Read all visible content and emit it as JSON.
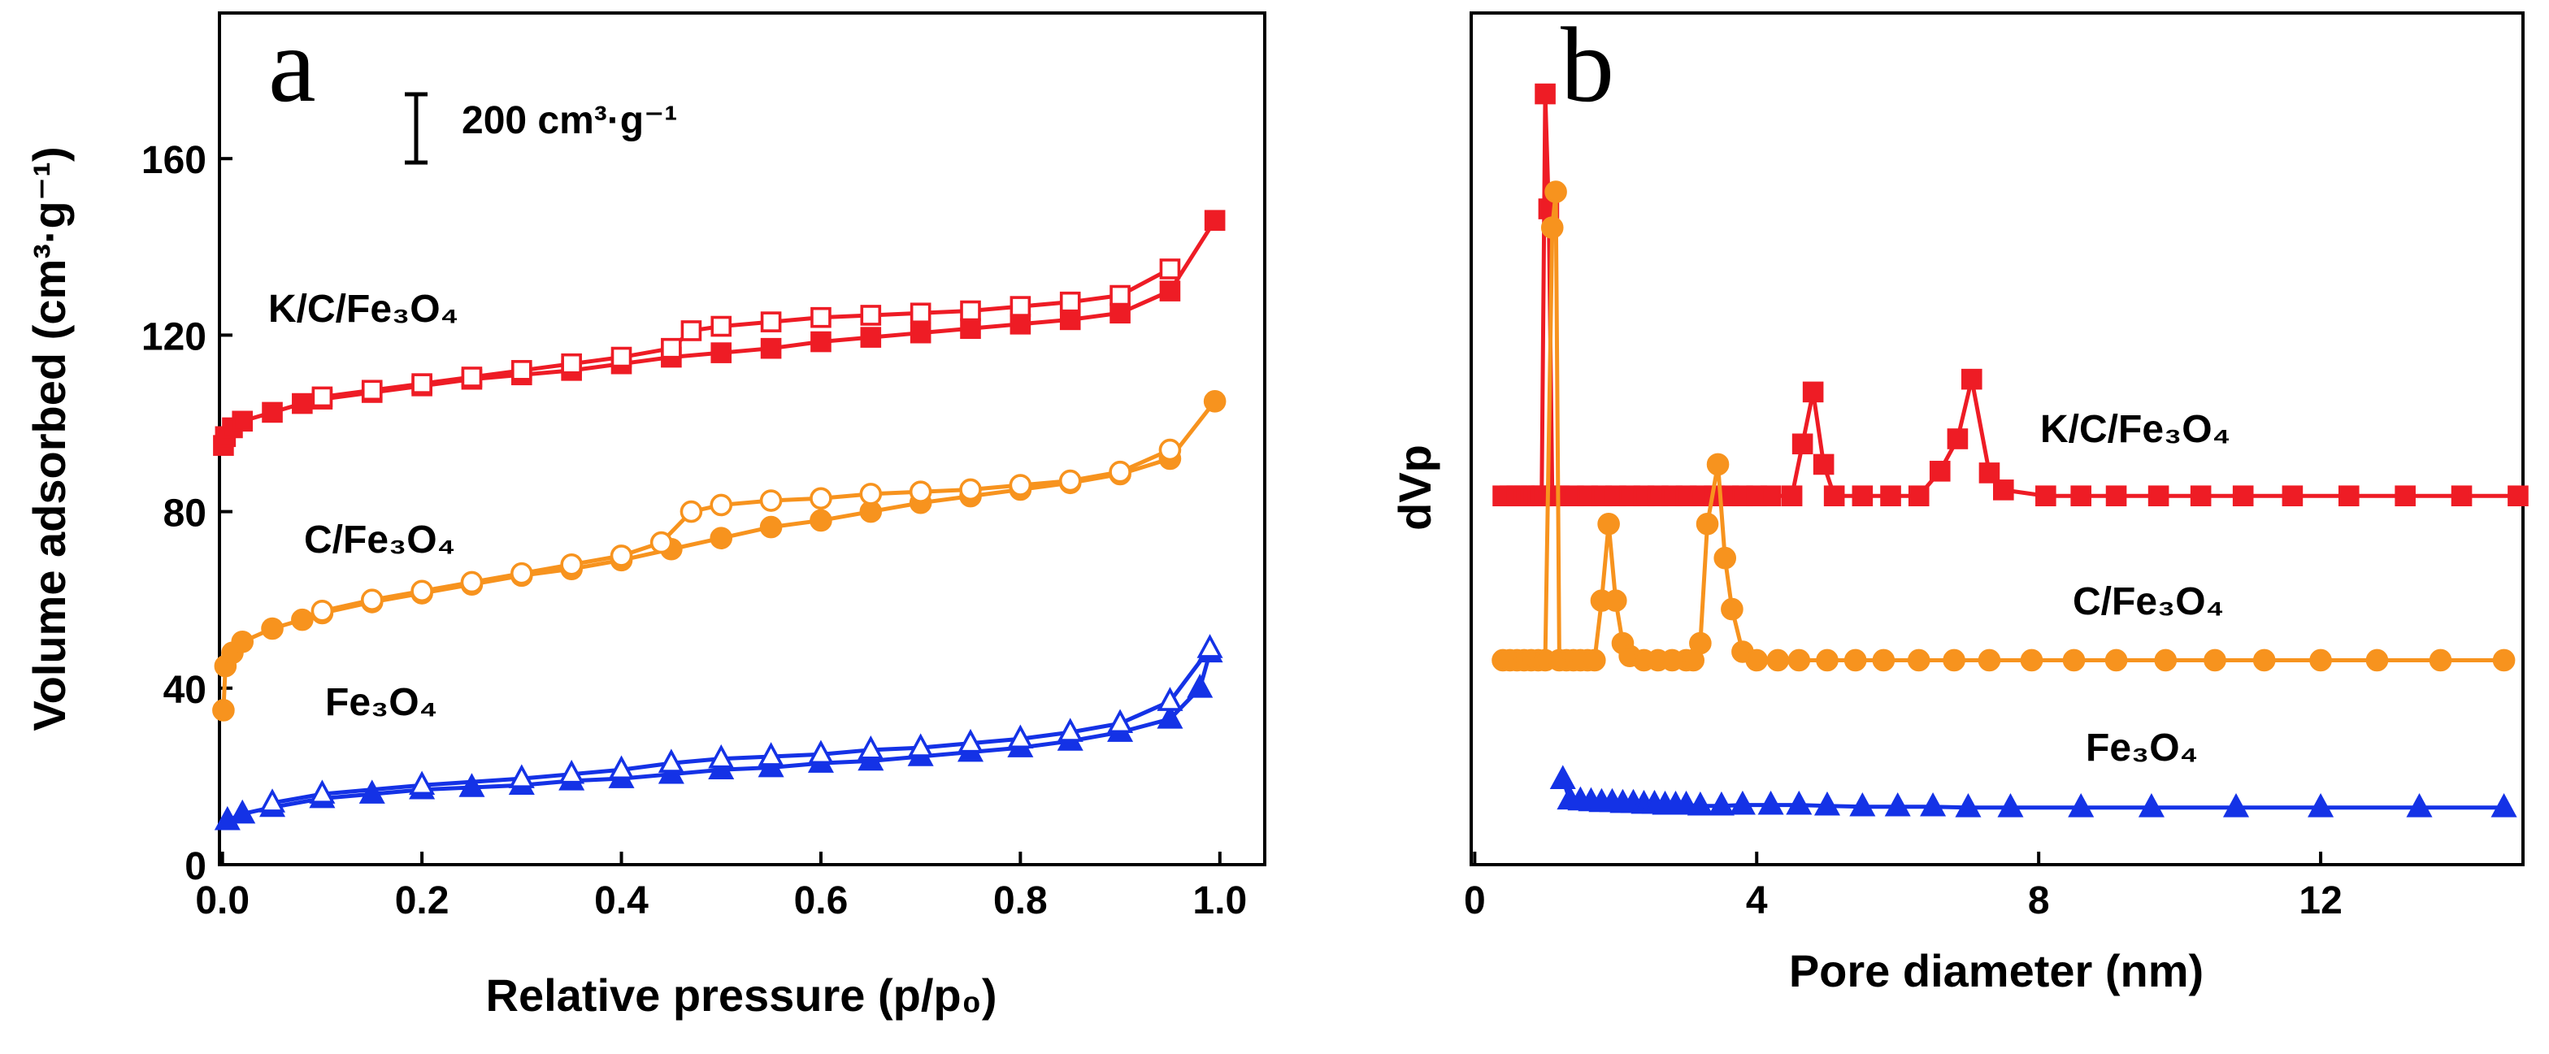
{
  "chart_data": [
    {
      "type": "line",
      "xlabel": "Relative pressure (p/p₀)",
      "ylabel": "Volume adsorbed (cm³·g⁻¹)",
      "xlim": [
        -0.003,
        1.045
      ],
      "ylim": [
        0,
        193
      ],
      "xticks": [
        {
          "value": 0,
          "label": "0.0"
        },
        0.2,
        0.4,
        0.6,
        0.8,
        {
          "value": 1,
          "label": "1.0"
        }
      ],
      "yticks": [
        0,
        40,
        80,
        120,
        160
      ],
      "annotations": [
        "a",
        "200 cm³·g⁻¹",
        "K/C/Fe₃O₄",
        "C/Fe₃O₄",
        "Fe₃O₄"
      ],
      "series": [
        {
          "color": "#ee1c25",
          "marker": "square",
          "filled": true,
          "x": [
            0.001,
            0.003,
            0.01,
            0.02,
            0.05,
            0.08,
            0.1,
            0.15,
            0.2,
            0.25,
            0.3,
            0.35,
            0.4,
            0.45,
            0.5,
            0.55,
            0.6,
            0.65,
            0.7,
            0.75,
            0.8,
            0.85,
            0.9,
            0.95,
            0.995
          ],
          "values": [
            95,
            97,
            99,
            100.5,
            102.5,
            104.5,
            105.5,
            107,
            108.5,
            110,
            111,
            112,
            113.5,
            115,
            116,
            117,
            118.5,
            119.5,
            120.5,
            121.5,
            122.5,
            123.5,
            125,
            130,
            146
          ]
        },
        {
          "color": "#ee1c25",
          "marker": "square",
          "filled": false,
          "x": [
            0.95,
            0.9,
            0.85,
            0.8,
            0.75,
            0.7,
            0.65,
            0.6,
            0.55,
            0.5,
            0.47,
            0.45,
            0.4,
            0.35,
            0.3,
            0.25,
            0.2,
            0.15,
            0.1
          ],
          "values": [
            135,
            129,
            127.5,
            126.5,
            125.5,
            125,
            124.5,
            124,
            123,
            122,
            121,
            117,
            115,
            113.5,
            112,
            110.5,
            109,
            107.5,
            106
          ]
        },
        {
          "color": "#f7931e",
          "marker": "circle",
          "filled": true,
          "x": [
            0.001,
            0.003,
            0.01,
            0.02,
            0.05,
            0.08,
            0.1,
            0.15,
            0.2,
            0.25,
            0.3,
            0.35,
            0.4,
            0.45,
            0.5,
            0.55,
            0.6,
            0.65,
            0.7,
            0.75,
            0.8,
            0.85,
            0.9,
            0.95,
            0.995
          ],
          "values": [
            35,
            45,
            48,
            50.5,
            53.5,
            55.5,
            57,
            59.5,
            61.5,
            63.5,
            65.5,
            67,
            69,
            71.5,
            74,
            76.5,
            78,
            80,
            82,
            83.5,
            85,
            86.5,
            88.5,
            92,
            105
          ]
        },
        {
          "color": "#f7931e",
          "marker": "circle",
          "filled": false,
          "x": [
            0.95,
            0.9,
            0.85,
            0.8,
            0.75,
            0.7,
            0.65,
            0.6,
            0.55,
            0.5,
            0.47,
            0.44,
            0.4,
            0.35,
            0.3,
            0.25,
            0.2,
            0.15,
            0.1
          ],
          "values": [
            94,
            89,
            87,
            86,
            85,
            84.5,
            84,
            83,
            82.5,
            81.5,
            80,
            73,
            70,
            68,
            66,
            64,
            62,
            60,
            57.5
          ]
        },
        {
          "color": "#1432e6",
          "marker": "triangle",
          "filled": true,
          "x": [
            0.005,
            0.02,
            0.05,
            0.1,
            0.15,
            0.2,
            0.25,
            0.3,
            0.35,
            0.4,
            0.45,
            0.5,
            0.55,
            0.6,
            0.65,
            0.7,
            0.75,
            0.8,
            0.85,
            0.9,
            0.95,
            0.98,
            0.99
          ],
          "values": [
            10,
            11.5,
            13,
            15,
            16,
            17,
            17.5,
            18,
            19,
            19.5,
            20.5,
            21.5,
            22,
            23,
            23.5,
            24.5,
            25.5,
            26.5,
            28,
            30,
            33,
            40,
            48
          ]
        },
        {
          "color": "#1432e6",
          "marker": "triangle",
          "filled": false,
          "x": [
            0.99,
            0.95,
            0.9,
            0.85,
            0.8,
            0.75,
            0.7,
            0.65,
            0.6,
            0.55,
            0.5,
            0.45,
            0.4,
            0.35,
            0.3,
            0.2,
            0.1,
            0.05
          ],
          "values": [
            49,
            37,
            32,
            30,
            28.5,
            27.5,
            26.5,
            26,
            25,
            24.5,
            24,
            23,
            21.5,
            20.5,
            19.5,
            18,
            16,
            14
          ]
        }
      ]
    },
    {
      "type": "line",
      "xlabel": "Pore diameter (nm)",
      "ylabel": "dVp",
      "xlim": [
        -0.05,
        14.87
      ],
      "ylim": [
        0,
        100
      ],
      "xticks": [
        0,
        4,
        8,
        12
      ],
      "annotations": [
        "b",
        "K/C/Fe₃O₄",
        "C/Fe₃O₄",
        "Fe₃O₄"
      ],
      "series": [
        {
          "color": "#ee1c25",
          "marker": "square",
          "filled": true,
          "x": [
            0.4,
            0.5,
            0.6,
            0.7,
            0.8,
            0.9,
            0.95,
            1.0,
            1.05,
            1.1,
            1.2,
            1.4,
            1.6,
            1.8,
            2.0,
            2.2,
            2.4,
            2.6,
            2.8,
            3.0,
            3.2,
            3.4,
            3.6,
            3.8,
            4.0,
            4.2,
            4.5,
            4.65,
            4.8,
            4.95,
            5.1,
            5.5,
            5.9,
            6.3,
            6.6,
            6.85,
            7.05,
            7.3,
            7.5,
            8.1,
            8.6,
            9.1,
            9.7,
            10.3,
            10.9,
            11.6,
            12.4,
            13.2,
            14.0,
            14.8
          ],
          "values": [
            43.3,
            43.3,
            43.3,
            43.3,
            43.3,
            43.3,
            43.3,
            90.5,
            77,
            43.3,
            43.3,
            43.3,
            43.3,
            43.3,
            43.3,
            43.3,
            43.3,
            43.3,
            43.3,
            43.3,
            43.3,
            43.3,
            43.3,
            43.3,
            43.3,
            43.3,
            43.3,
            49.4,
            55.5,
            47,
            43.3,
            43.3,
            43.3,
            43.3,
            46.2,
            50,
            57,
            46,
            44,
            43.3,
            43.3,
            43.3,
            43.3,
            43.3,
            43.3,
            43.3,
            43.3,
            43.3,
            43.3,
            43.3
          ]
        },
        {
          "color": "#f7931e",
          "marker": "circle",
          "filled": true,
          "x": [
            0.4,
            0.5,
            0.6,
            0.7,
            0.8,
            0.9,
            1.0,
            1.1,
            1.15,
            1.2,
            1.3,
            1.4,
            1.5,
            1.6,
            1.7,
            1.8,
            1.9,
            2.0,
            2.1,
            2.2,
            2.4,
            2.6,
            2.8,
            3.0,
            3.1,
            3.2,
            3.3,
            3.45,
            3.55,
            3.65,
            3.8,
            4.0,
            4.3,
            4.6,
            5.0,
            5.4,
            5.8,
            6.3,
            6.8,
            7.3,
            7.9,
            8.5,
            9.1,
            9.8,
            10.5,
            11.2,
            12.0,
            12.8,
            13.7,
            14.6
          ],
          "values": [
            24,
            24,
            24,
            24,
            24,
            24,
            24,
            74.8,
            79,
            24,
            24,
            24,
            24,
            24,
            24,
            31,
            40,
            31,
            26,
            24.5,
            24,
            24,
            24,
            24,
            24,
            26,
            40,
            47,
            36,
            30,
            25,
            24,
            24,
            24,
            24,
            24,
            24,
            24,
            24,
            24,
            24,
            24,
            24,
            24,
            24,
            24,
            24,
            24,
            24,
            24
          ]
        },
        {
          "color": "#1432e6",
          "marker": "triangle",
          "filled": true,
          "x": [
            1.25,
            1.35,
            1.5,
            1.65,
            1.8,
            1.95,
            2.1,
            2.25,
            2.4,
            2.55,
            2.7,
            2.85,
            3.0,
            3.2,
            3.5,
            3.8,
            4.2,
            4.6,
            5.0,
            5.5,
            6.0,
            6.5,
            7.0,
            7.6,
            8.6,
            9.6,
            10.8,
            12.0,
            13.4,
            14.6
          ],
          "values": [
            10,
            7.6,
            7.5,
            7.4,
            7.3,
            7.3,
            7.2,
            7.2,
            7.1,
            7.1,
            7.0,
            7.0,
            7.0,
            6.9,
            6.9,
            7.0,
            7.0,
            7.0,
            6.9,
            6.8,
            6.8,
            6.8,
            6.7,
            6.7,
            6.7,
            6.7,
            6.7,
            6.7,
            6.7,
            6.7
          ]
        }
      ]
    }
  ]
}
